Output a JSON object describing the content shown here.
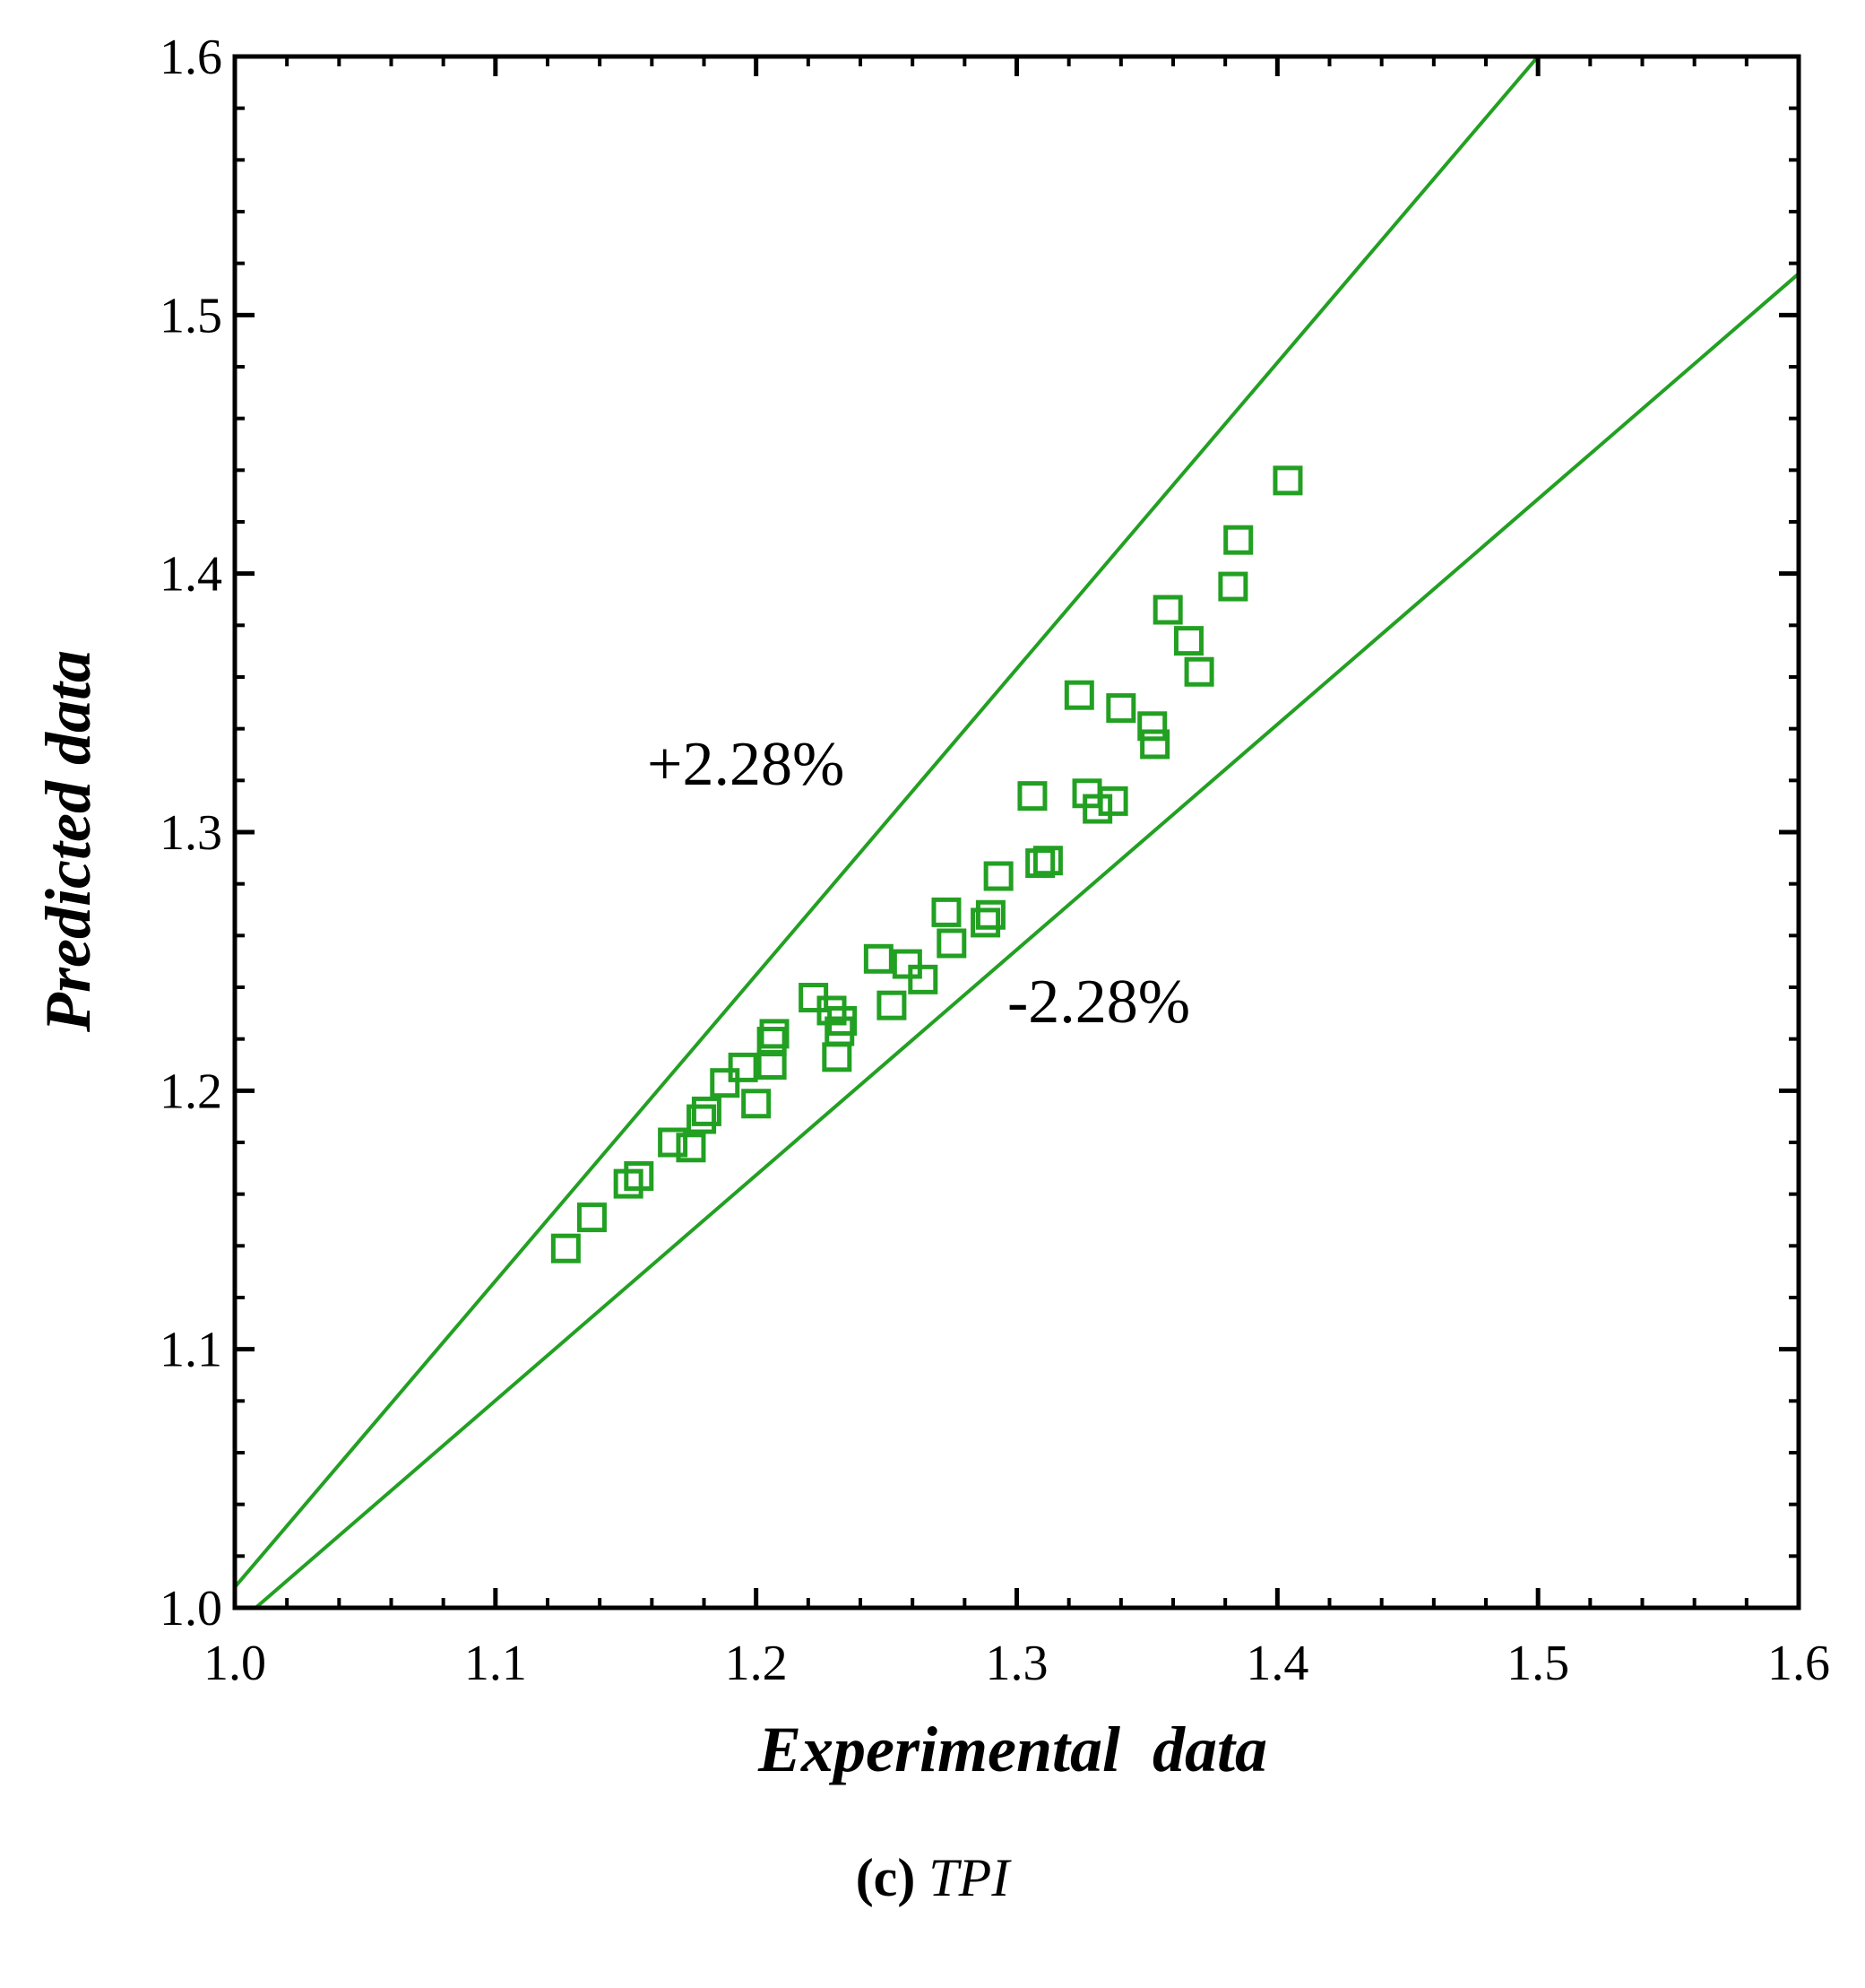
{
  "chart_data": {
    "type": "scatter",
    "title": "",
    "xlabel": "Experimental  data",
    "ylabel": "Predicted data",
    "xlim": [
      1.0,
      1.6
    ],
    "ylim": [
      1.0,
      1.6
    ],
    "xticks": [
      "1.0",
      "1.1",
      "1.2",
      "1.3",
      "1.4",
      "1.5",
      "1.6"
    ],
    "yticks": [
      "1.0",
      "1.1",
      "1.2",
      "1.3",
      "1.4",
      "1.5",
      "1.6"
    ],
    "grid": false,
    "color": "#22a022",
    "marker": "open-square",
    "series": [
      {
        "name": "TPI",
        "points": [
          [
            1.127,
            1.139
          ],
          [
            1.137,
            1.151
          ],
          [
            1.151,
            1.164
          ],
          [
            1.155,
            1.167
          ],
          [
            1.168,
            1.18
          ],
          [
            1.175,
            1.178
          ],
          [
            1.179,
            1.189
          ],
          [
            1.181,
            1.192
          ],
          [
            1.188,
            1.203
          ],
          [
            1.195,
            1.209
          ],
          [
            1.2,
            1.195
          ],
          [
            1.206,
            1.21
          ],
          [
            1.206,
            1.219
          ],
          [
            1.207,
            1.222
          ],
          [
            1.222,
            1.236
          ],
          [
            1.229,
            1.231
          ],
          [
            1.231,
            1.213
          ],
          [
            1.232,
            1.223
          ],
          [
            1.233,
            1.227
          ],
          [
            1.247,
            1.251
          ],
          [
            1.252,
            1.233
          ],
          [
            1.258,
            1.249
          ],
          [
            1.264,
            1.243
          ],
          [
            1.273,
            1.269
          ],
          [
            1.275,
            1.257
          ],
          [
            1.288,
            1.265
          ],
          [
            1.29,
            1.268
          ],
          [
            1.293,
            1.283
          ],
          [
            1.306,
            1.314
          ],
          [
            1.309,
            1.288
          ],
          [
            1.312,
            1.289
          ],
          [
            1.324,
            1.353
          ],
          [
            1.327,
            1.315
          ],
          [
            1.331,
            1.309
          ],
          [
            1.337,
            1.312
          ],
          [
            1.34,
            1.348
          ],
          [
            1.352,
            1.341
          ],
          [
            1.353,
            1.334
          ],
          [
            1.358,
            1.386
          ],
          [
            1.366,
            1.374
          ],
          [
            1.37,
            1.362
          ],
          [
            1.383,
            1.395
          ],
          [
            1.385,
            1.413
          ],
          [
            1.404,
            1.436
          ]
        ]
      }
    ],
    "reference_lines": [
      {
        "name": "upper",
        "label": "+2.28%",
        "from": [
          1.0,
          1.008
        ],
        "to": [
          1.5,
          1.6
        ]
      },
      {
        "name": "lower",
        "label": "-2.28%",
        "from": [
          1.008,
          1.0
        ],
        "to": [
          1.6,
          1.516
        ]
      }
    ]
  },
  "caption": {
    "tag": "(c)",
    "name": "TPI"
  }
}
